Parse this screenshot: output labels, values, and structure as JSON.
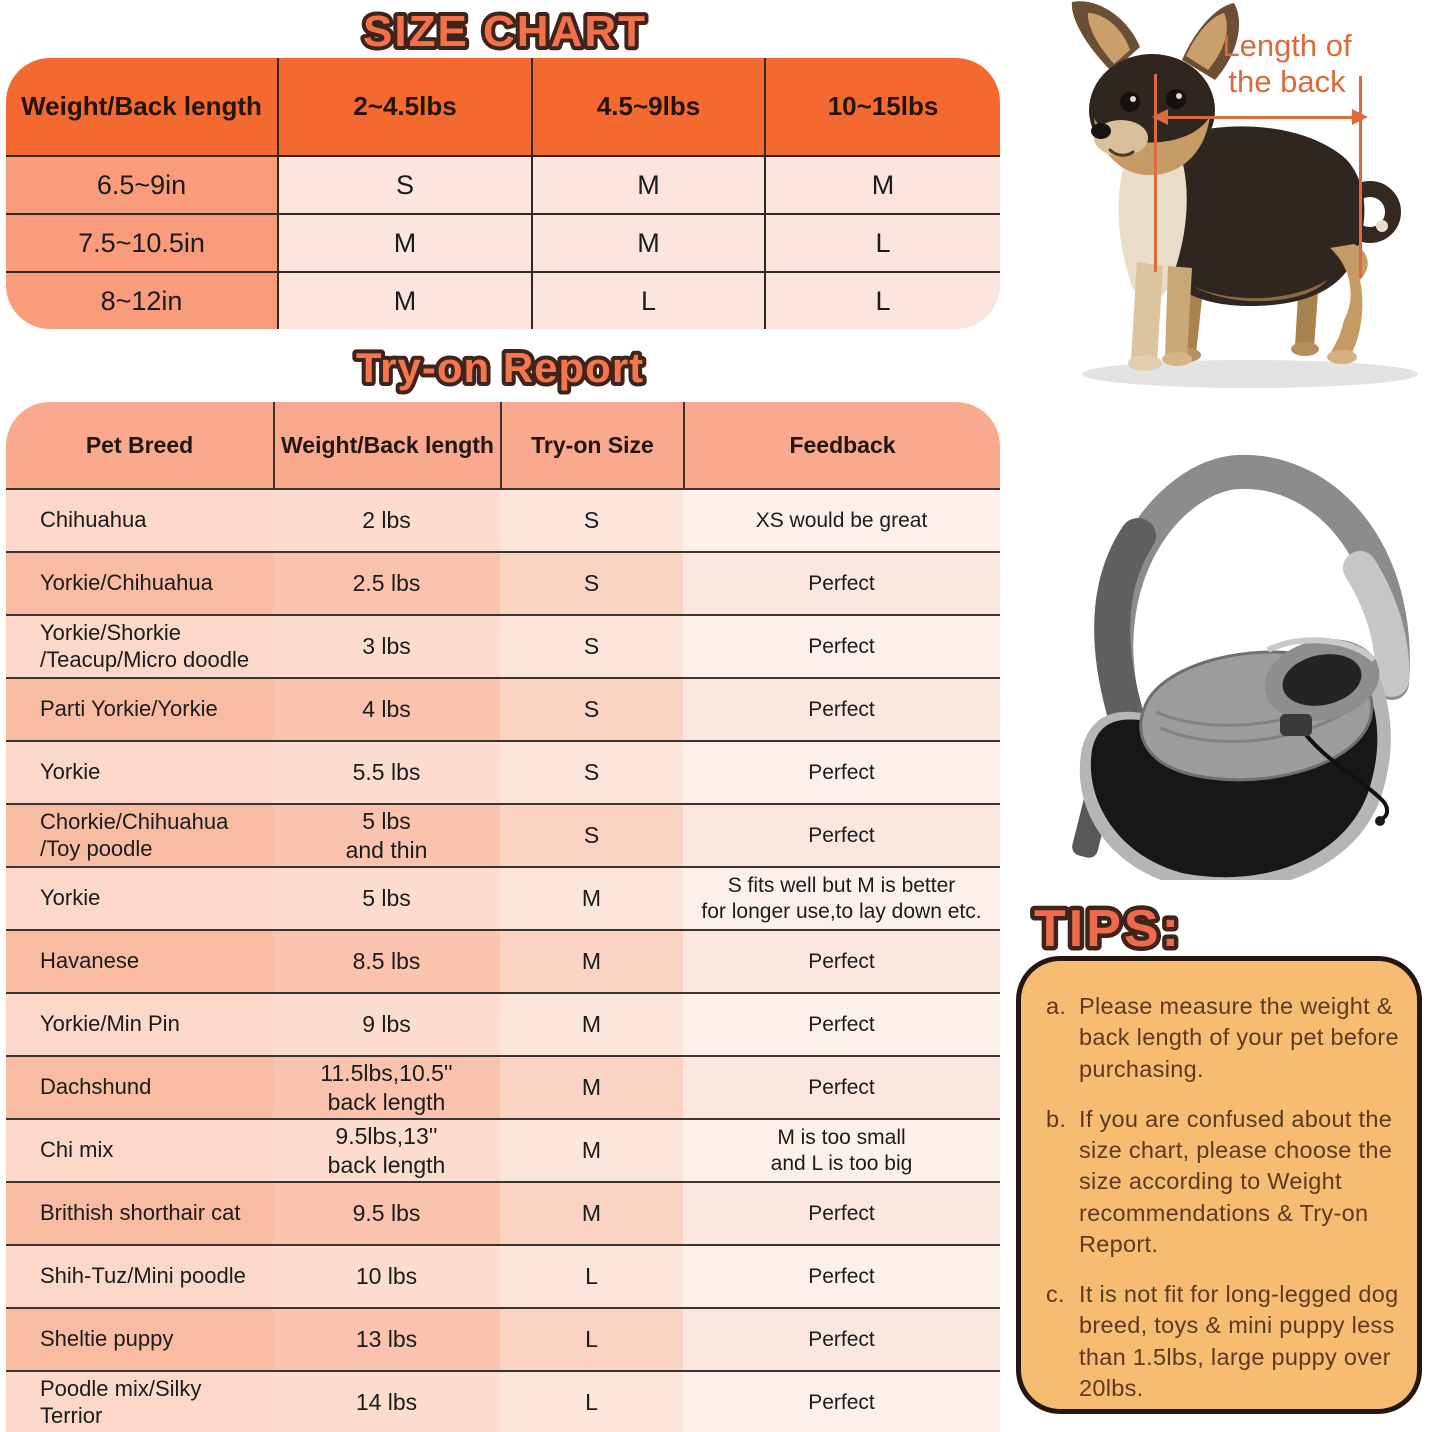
{
  "size_chart": {
    "title": "SIZE CHART",
    "columns": [
      "Weight/Back length",
      "2~4.5lbs",
      "4.5~9lbs",
      "10~15lbs"
    ],
    "rows": [
      {
        "label": "6.5~9in",
        "values": [
          "S",
          "M",
          "M"
        ]
      },
      {
        "label": "7.5~10.5in",
        "values": [
          "M",
          "M",
          "L"
        ]
      },
      {
        "label": "8~12in",
        "values": [
          "M",
          "L",
          "L"
        ]
      }
    ]
  },
  "tryon": {
    "title": "Try-on Report",
    "columns": [
      "Pet Breed",
      "Weight/Back length",
      "Try-on Size",
      "Feedback"
    ],
    "rows": [
      {
        "breed": "Chihuahua",
        "weight": "2 lbs",
        "size": "S",
        "feedback": "XS would be great"
      },
      {
        "breed": "Yorkie/Chihuahua",
        "weight": "2.5 lbs",
        "size": "S",
        "feedback": "Perfect"
      },
      {
        "breed": "Yorkie/Shorkie\n/Teacup/Micro doodle",
        "weight": "3 lbs",
        "size": "S",
        "feedback": "Perfect"
      },
      {
        "breed": "Parti Yorkie/Yorkie",
        "weight": "4 lbs",
        "size": "S",
        "feedback": "Perfect"
      },
      {
        "breed": "Yorkie",
        "weight": "5.5 lbs",
        "size": "S",
        "feedback": "Perfect"
      },
      {
        "breed": "Chorkie/Chihuahua\n/Toy poodle",
        "weight": "5 lbs\nand thin",
        "size": "S",
        "feedback": "Perfect"
      },
      {
        "breed": "Yorkie",
        "weight": "5 lbs",
        "size": "M",
        "feedback": "S fits well but M is better\nfor longer use,to lay down etc."
      },
      {
        "breed": "Havanese",
        "weight": "8.5 lbs",
        "size": "M",
        "feedback": "Perfect"
      },
      {
        "breed": "Yorkie/Min Pin",
        "weight": "9 lbs",
        "size": "M",
        "feedback": "Perfect"
      },
      {
        "breed": "Dachshund",
        "weight": "11.5lbs,10.5''\nback length",
        "size": "M",
        "feedback": "Perfect"
      },
      {
        "breed": "Chi mix",
        "weight": "9.5lbs,13''\nback length",
        "size": "M",
        "feedback": "M is too small\nand L is too big"
      },
      {
        "breed": "Brithish shorthair cat",
        "weight": "9.5 lbs",
        "size": "M",
        "feedback": "Perfect"
      },
      {
        "breed": "Shih-Tuz/Mini poodle",
        "weight": "10 lbs",
        "size": "L",
        "feedback": "Perfect"
      },
      {
        "breed": "Sheltie puppy",
        "weight": "13 lbs",
        "size": "L",
        "feedback": "Perfect"
      },
      {
        "breed": "Poodle mix/Silky\nTerrior",
        "weight": "14 lbs",
        "size": "L",
        "feedback": "Perfect"
      }
    ]
  },
  "annotation": {
    "label": "Length of the back"
  },
  "tips": {
    "title": "TIPS:",
    "items": [
      {
        "marker": "a.",
        "text": "Please measure the weight & back length of your pet before purchasing."
      },
      {
        "marker": "b.",
        "text": "If you are confused about the size chart, please choose the size according to Weight recommendations & Try-on Report."
      },
      {
        "marker": "c.",
        "text": "It is not fit for long-legged dog breed, toys & mini puppy less than 1.5lbs, large puppy over 20lbs."
      }
    ]
  },
  "images": {
    "dog": "chihuahua standing side view photo",
    "bag": "grey and black mesh pet sling carrier photo"
  },
  "colors": {
    "header_orange": "#F4692F",
    "header_salmon": "#F9A98D",
    "label_salmon": "#F89C7B",
    "cell_pink": "#FBE5DC",
    "tips_bg": "#F6BC72",
    "tips_text": "#5E3A20",
    "annotation_orange": "#DB6B3C",
    "title_fill": "#F2714A",
    "title_outline": "#3E241A"
  }
}
